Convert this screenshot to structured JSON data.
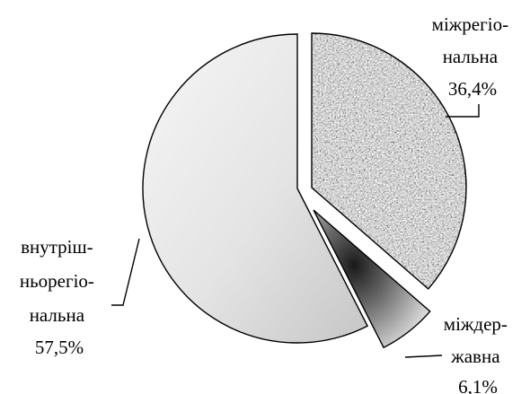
{
  "chart_data": {
    "type": "pie",
    "title": "",
    "exploded": true,
    "slices": [
      {
        "name": "міжрегіональна",
        "label_lines": [
          "міжрегіо-",
          "нальна"
        ],
        "value_label": "36,4%",
        "value": 36.4,
        "fill": "noise-grey"
      },
      {
        "name": "міждержавна",
        "label_lines": [
          "міждер-",
          "жавна"
        ],
        "value_label": "6,1%",
        "value": 6.1,
        "fill": "dark-radial-gradient"
      },
      {
        "name": "внутрішньорегіональна",
        "label_lines": [
          "внутріш-",
          "ньорегіо-",
          "нальна"
        ],
        "value_label": "57,5%",
        "value": 57.5,
        "fill": "light-grey-gradient"
      }
    ]
  }
}
